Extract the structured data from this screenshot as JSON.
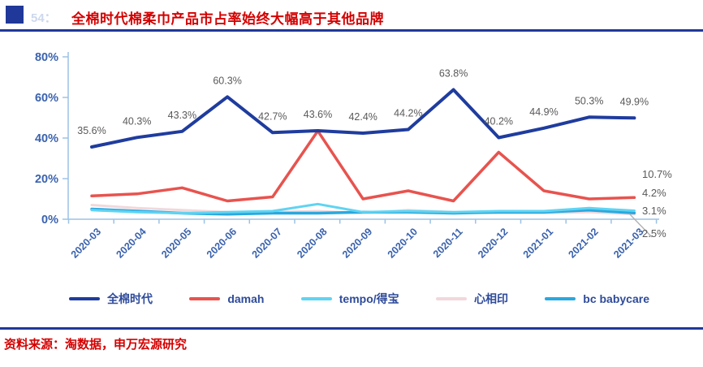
{
  "header": {
    "figure_marker": "54：",
    "title": "全棉时代棉柔巾产品市占率始终大幅高于其他品牌"
  },
  "footer": {
    "source": "资料来源：淘数据，申万宏源研究"
  },
  "colors": {
    "title_red": "#d40000",
    "rule_navy": "#1f3899",
    "axis_line": "#9cc2e5",
    "axis_label_blue": "#3a62ae",
    "data_label_gray": "#595959",
    "legend_text_blue": "#2e4b9b",
    "leader_gray": "#b0b0b0"
  },
  "chart_data": {
    "type": "line",
    "title": "全棉时代棉柔巾产品市占率始终大幅高于其他品牌",
    "xlabel": "",
    "ylabel": "",
    "ylim": [
      0,
      80
    ],
    "grid": false,
    "legend_position": "bottom",
    "y_ticks": [
      "0%",
      "20%",
      "40%",
      "60%",
      "80%"
    ],
    "y_tick_values": [
      0,
      20,
      40,
      60,
      80
    ],
    "categories": [
      "2020-03",
      "2020-04",
      "2020-05",
      "2020-06",
      "2020-07",
      "2020-08",
      "2020-09",
      "2020-10",
      "2020-11",
      "2020-12",
      "2021-01",
      "2021-02",
      "2021-03"
    ],
    "series": [
      {
        "name": "全棉时代",
        "color": "#1f3c9e",
        "stroke_width": 4,
        "values": [
          35.6,
          40.3,
          43.3,
          60.3,
          42.7,
          43.6,
          42.4,
          44.2,
          63.8,
          40.2,
          44.9,
          50.3,
          49.9
        ],
        "point_labels": [
          "35.6%",
          "40.3%",
          "43.3%",
          "60.3%",
          "42.7%",
          "43.6%",
          "42.4%",
          "44.2%",
          "63.8%",
          "40.2%",
          "44.9%",
          "50.3%",
          "49.9%"
        ]
      },
      {
        "name": "damah",
        "color": "#e8534e",
        "stroke_width": 3.5,
        "values": [
          11.5,
          12.5,
          15.5,
          9.0,
          11.0,
          43.5,
          10.0,
          14.0,
          9.0,
          33.0,
          14.0,
          10.0,
          10.7
        ]
      },
      {
        "name": "tempo/得宝",
        "color": "#5fd4f2",
        "stroke_width": 3,
        "values": [
          4.5,
          3.5,
          3.0,
          3.5,
          4.0,
          7.5,
          3.5,
          4.0,
          3.5,
          4.0,
          4.0,
          5.5,
          4.2
        ]
      },
      {
        "name": "心相印",
        "color": "#f1d8dc",
        "stroke_width": 3,
        "values": [
          7.0,
          5.5,
          4.5,
          3.5,
          3.5,
          4.0,
          3.0,
          4.5,
          3.5,
          3.0,
          3.0,
          3.5,
          2.5
        ]
      },
      {
        "name": "bc babycare",
        "color": "#29a8e0",
        "stroke_width": 3.5,
        "values": [
          5.0,
          4.0,
          3.0,
          2.5,
          3.0,
          3.0,
          3.5,
          3.5,
          3.0,
          3.5,
          3.5,
          4.5,
          3.1
        ]
      }
    ],
    "end_labels": [
      {
        "text": "10.7%",
        "series": "damah"
      },
      {
        "text": "4.2%",
        "series": "tempo/得宝"
      },
      {
        "text": "3.1%",
        "series": "bc babycare"
      },
      {
        "text": "2.5%",
        "series": "心相印"
      }
    ]
  }
}
